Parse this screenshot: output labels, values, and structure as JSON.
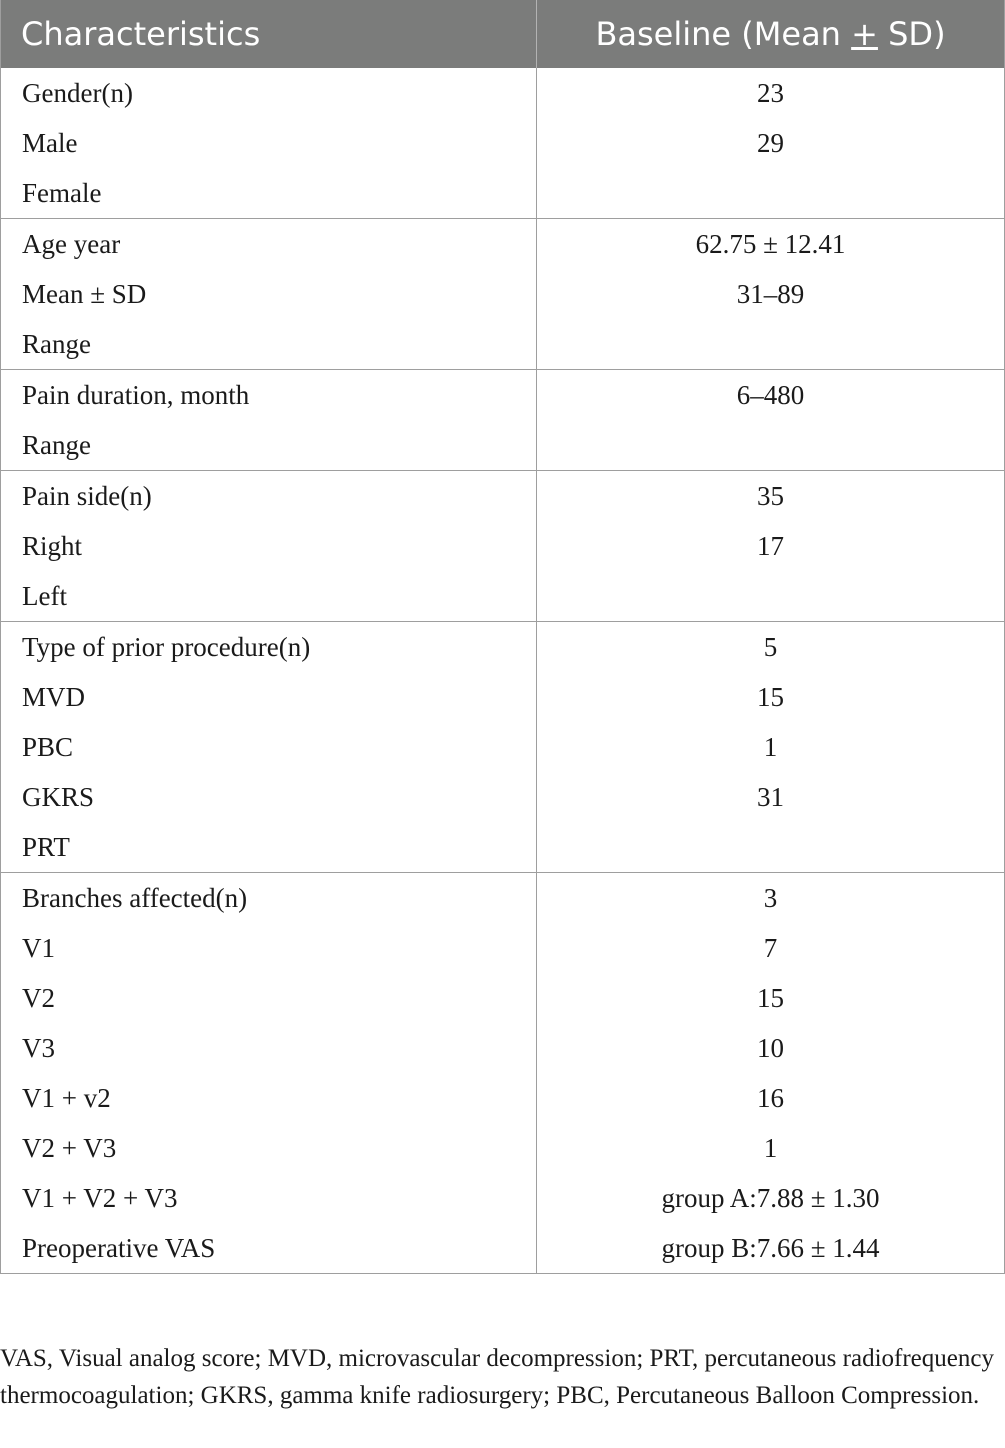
{
  "header": {
    "col1": "Characteristics",
    "col2_prefix": "Baseline (Mean ",
    "col2_pm": "+",
    "col2_suffix": " SD)"
  },
  "groups": [
    {
      "labels": [
        "Gender(n)",
        "Male",
        "Female"
      ],
      "values": [
        "23",
        "29",
        ""
      ]
    },
    {
      "labels": [
        "Age year",
        "Mean ± SD",
        "Range"
      ],
      "values": [
        "62.75 ± 12.41",
        "31–89",
        ""
      ]
    },
    {
      "labels": [
        "Pain duration, month",
        "Range"
      ],
      "values": [
        "6–480",
        ""
      ]
    },
    {
      "labels": [
        "Pain side(n)",
        "Right",
        "Left"
      ],
      "values": [
        "35",
        "17",
        ""
      ]
    },
    {
      "labels": [
        "Type of prior procedure(n)",
        "MVD",
        "PBC",
        "GKRS",
        "PRT"
      ],
      "values": [
        "5",
        "15",
        "1",
        "31",
        ""
      ]
    },
    {
      "labels": [
        "Branches affected(n)",
        "V1",
        "V2",
        "V3",
        "V1 + v2",
        "V2 + V3",
        "V1 + V2 + V3",
        "Preoperative VAS"
      ],
      "values": [
        "3",
        "7",
        "15",
        "10",
        "16",
        "1",
        "group A:7.88 ± 1.30",
        "group B:7.66 ± 1.44"
      ]
    }
  ],
  "footnote": "VAS, Visual analog score; MVD, microvascular decompression; PRT, percutaneous radiofrequency thermocoagulation; GKRS, gamma knife radiosurgery; PBC, Percutaneous Balloon Compression."
}
